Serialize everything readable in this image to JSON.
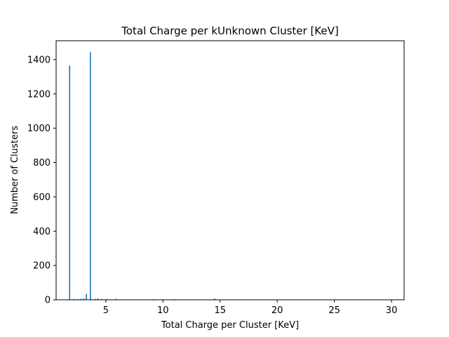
{
  "chart_data": {
    "type": "bar",
    "title": "Total Charge per kUnknown Cluster [KeV]",
    "xlabel": "Total Charge per Cluster [KeV]",
    "ylabel": "Number of Clusters",
    "xlim": [
      0.65,
      31.1
    ],
    "ylim": [
      0,
      1510
    ],
    "x_ticks": [
      5,
      10,
      15,
      20,
      25,
      30
    ],
    "x_tick_labels": [
      "5",
      "10",
      "15",
      "20",
      "25",
      "30"
    ],
    "y_ticks": [
      0,
      200,
      400,
      600,
      800,
      1000,
      1200,
      1400
    ],
    "y_tick_labels": [
      "0",
      "200",
      "400",
      "600",
      "800",
      "1000",
      "1200",
      "1400"
    ],
    "bar_color": "#1f77b4",
    "grid": false,
    "bin_width": 0.1,
    "x": [
      1.83,
      2.2,
      2.5,
      2.8,
      3.05,
      3.3,
      3.65,
      4.05,
      4.3,
      4.6,
      5.1,
      5.9,
      6.4,
      8.4,
      9.2,
      10.0,
      11.0,
      14.5
    ],
    "values": [
      1365,
      5,
      4,
      6,
      8,
      33,
      1443,
      6,
      8,
      5,
      4,
      7,
      3,
      3,
      4,
      3,
      4,
      8
    ]
  }
}
